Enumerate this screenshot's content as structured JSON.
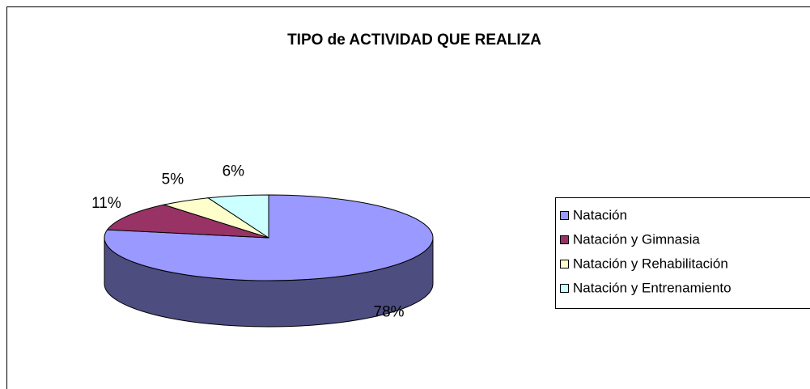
{
  "chart_data": {
    "type": "pie",
    "title": "TIPO de  ACTIVIDAD QUE REALIZA",
    "categories": [
      "Natación",
      "Natación y Gimnasia",
      "Natación y Rehabilitación",
      "Natación y Entrenamiento"
    ],
    "values": [
      78,
      11,
      5,
      6
    ],
    "value_labels": [
      "78%",
      "11%",
      "5%",
      "6%"
    ],
    "colors": [
      "#9999ff",
      "#993366",
      "#ffffcc",
      "#ccffff"
    ],
    "legend": "right"
  }
}
